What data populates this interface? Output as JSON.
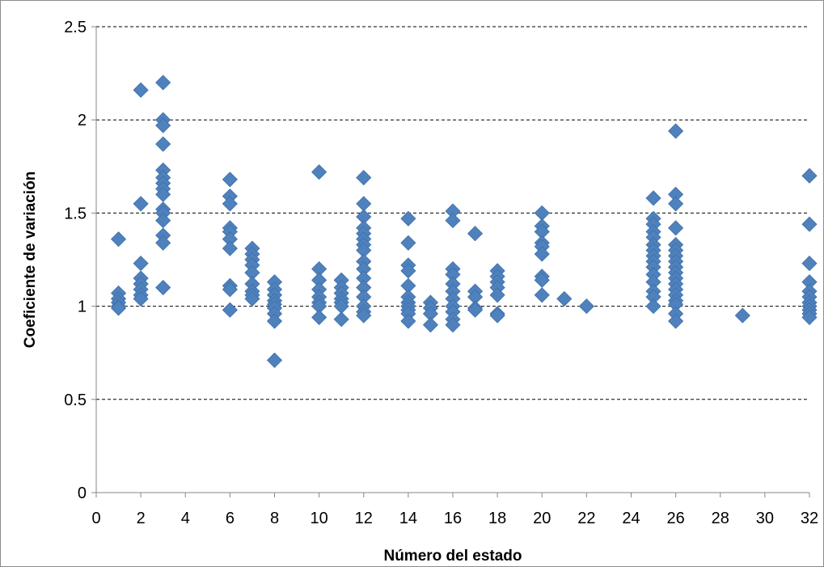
{
  "chart_data": {
    "type": "scatter",
    "title": "",
    "xlabel": "Número del estado",
    "ylabel": "Coeficiente de variación",
    "xlim": [
      0,
      32
    ],
    "ylim": [
      0,
      2.5
    ],
    "x_ticks": [
      0,
      2,
      4,
      6,
      8,
      10,
      12,
      14,
      16,
      18,
      20,
      22,
      24,
      26,
      28,
      30,
      32
    ],
    "y_ticks": [
      0,
      0.5,
      1,
      1.5,
      2,
      2.5
    ],
    "x_tick_labels": [
      "0",
      "2",
      "4",
      "6",
      "8",
      "10",
      "12",
      "14",
      "16",
      "18",
      "20",
      "22",
      "24",
      "26",
      "28",
      "30",
      "32"
    ],
    "y_tick_labels": [
      "0",
      "0.5",
      "1",
      "1.5",
      "2",
      "2.5"
    ],
    "grid": "horizontal dashed lines at major y ticks",
    "marker": "diamond",
    "marker_color": "#4f81bd",
    "series": [
      {
        "points": [
          [
            1,
            1.36
          ],
          [
            1,
            1.07
          ],
          [
            1,
            1.04
          ],
          [
            1,
            1.02
          ],
          [
            1,
            1.0
          ],
          [
            1,
            0.99
          ],
          [
            2,
            2.16
          ],
          [
            2,
            1.55
          ],
          [
            2,
            1.23
          ],
          [
            2,
            1.15
          ],
          [
            2,
            1.12
          ],
          [
            2,
            1.09
          ],
          [
            2,
            1.06
          ],
          [
            2,
            1.04
          ],
          [
            3,
            2.2
          ],
          [
            3,
            2.0
          ],
          [
            3,
            1.97
          ],
          [
            3,
            1.87
          ],
          [
            3,
            1.73
          ],
          [
            3,
            1.69
          ],
          [
            3,
            1.66
          ],
          [
            3,
            1.63
          ],
          [
            3,
            1.6
          ],
          [
            3,
            1.52
          ],
          [
            3,
            1.5
          ],
          [
            3,
            1.46
          ],
          [
            3,
            1.38
          ],
          [
            3,
            1.34
          ],
          [
            3,
            1.1
          ],
          [
            6,
            1.68
          ],
          [
            6,
            1.59
          ],
          [
            6,
            1.55
          ],
          [
            6,
            1.42
          ],
          [
            6,
            1.4
          ],
          [
            6,
            1.36
          ],
          [
            6,
            1.31
          ],
          [
            6,
            1.11
          ],
          [
            6,
            1.09
          ],
          [
            6,
            0.98
          ],
          [
            7,
            1.31
          ],
          [
            7,
            1.28
          ],
          [
            7,
            1.25
          ],
          [
            7,
            1.22
          ],
          [
            7,
            1.18
          ],
          [
            7,
            1.12
          ],
          [
            7,
            1.08
          ],
          [
            7,
            1.06
          ],
          [
            7,
            1.04
          ],
          [
            8,
            1.13
          ],
          [
            8,
            1.09
          ],
          [
            8,
            1.06
          ],
          [
            8,
            1.03
          ],
          [
            8,
            1.01
          ],
          [
            8,
            0.99
          ],
          [
            8,
            0.96
          ],
          [
            8,
            0.92
          ],
          [
            8,
            0.71
          ],
          [
            10,
            1.72
          ],
          [
            10,
            1.2
          ],
          [
            10,
            1.14
          ],
          [
            10,
            1.09
          ],
          [
            10,
            1.05
          ],
          [
            10,
            1.02
          ],
          [
            10,
            1.0
          ],
          [
            10,
            0.94
          ],
          [
            11,
            1.14
          ],
          [
            11,
            1.1
          ],
          [
            11,
            1.07
          ],
          [
            11,
            1.04
          ],
          [
            11,
            1.02
          ],
          [
            11,
            1.0
          ],
          [
            11,
            0.93
          ],
          [
            12,
            1.69
          ],
          [
            12,
            1.55
          ],
          [
            12,
            1.48
          ],
          [
            12,
            1.42
          ],
          [
            12,
            1.39
          ],
          [
            12,
            1.36
          ],
          [
            12,
            1.33
          ],
          [
            12,
            1.3
          ],
          [
            12,
            1.24
          ],
          [
            12,
            1.2
          ],
          [
            12,
            1.15
          ],
          [
            12,
            1.1
          ],
          [
            12,
            1.05
          ],
          [
            12,
            1.0
          ],
          [
            12,
            0.97
          ],
          [
            12,
            0.95
          ],
          [
            14,
            1.47
          ],
          [
            14,
            1.34
          ],
          [
            14,
            1.22
          ],
          [
            14,
            1.19
          ],
          [
            14,
            1.11
          ],
          [
            14,
            1.05
          ],
          [
            14,
            1.02
          ],
          [
            14,
            1.0
          ],
          [
            14,
            0.98
          ],
          [
            14,
            0.96
          ],
          [
            14,
            0.92
          ],
          [
            15,
            1.02
          ],
          [
            15,
            0.99
          ],
          [
            15,
            0.96
          ],
          [
            15,
            0.9
          ],
          [
            16,
            1.51
          ],
          [
            16,
            1.46
          ],
          [
            16,
            1.2
          ],
          [
            16,
            1.17
          ],
          [
            16,
            1.12
          ],
          [
            16,
            1.08
          ],
          [
            16,
            1.04
          ],
          [
            16,
            1.0
          ],
          [
            16,
            0.97
          ],
          [
            16,
            0.93
          ],
          [
            16,
            0.9
          ],
          [
            17,
            1.39
          ],
          [
            17,
            1.08
          ],
          [
            17,
            1.05
          ],
          [
            17,
            0.99
          ],
          [
            17,
            0.98
          ],
          [
            18,
            1.19
          ],
          [
            18,
            1.16
          ],
          [
            18,
            1.13
          ],
          [
            18,
            1.1
          ],
          [
            18,
            1.06
          ],
          [
            18,
            0.96
          ],
          [
            18,
            0.95
          ],
          [
            20,
            1.5
          ],
          [
            20,
            1.43
          ],
          [
            20,
            1.4
          ],
          [
            20,
            1.34
          ],
          [
            20,
            1.32
          ],
          [
            20,
            1.28
          ],
          [
            20,
            1.16
          ],
          [
            20,
            1.14
          ],
          [
            20,
            1.06
          ],
          [
            21,
            1.04
          ],
          [
            22,
            1.0
          ],
          [
            25,
            1.58
          ],
          [
            25,
            1.47
          ],
          [
            25,
            1.44
          ],
          [
            25,
            1.4
          ],
          [
            25,
            1.37
          ],
          [
            25,
            1.33
          ],
          [
            25,
            1.3
          ],
          [
            25,
            1.27
          ],
          [
            25,
            1.24
          ],
          [
            25,
            1.21
          ],
          [
            25,
            1.17
          ],
          [
            25,
            1.13
          ],
          [
            25,
            1.08
          ],
          [
            25,
            1.05
          ],
          [
            25,
            1.0
          ],
          [
            26,
            1.94
          ],
          [
            26,
            1.6
          ],
          [
            26,
            1.55
          ],
          [
            26,
            1.42
          ],
          [
            26,
            1.33
          ],
          [
            26,
            1.3
          ],
          [
            26,
            1.27
          ],
          [
            26,
            1.24
          ],
          [
            26,
            1.21
          ],
          [
            26,
            1.18
          ],
          [
            26,
            1.15
          ],
          [
            26,
            1.12
          ],
          [
            26,
            1.09
          ],
          [
            26,
            1.06
          ],
          [
            26,
            1.03
          ],
          [
            26,
            1.01
          ],
          [
            26,
            0.96
          ],
          [
            26,
            0.92
          ],
          [
            29,
            0.95
          ],
          [
            32,
            1.7
          ],
          [
            32,
            1.44
          ],
          [
            32,
            1.23
          ],
          [
            32,
            1.13
          ],
          [
            32,
            1.08
          ],
          [
            32,
            1.05
          ],
          [
            32,
            1.02
          ],
          [
            32,
            1.0
          ],
          [
            32,
            0.98
          ],
          [
            32,
            0.96
          ],
          [
            32,
            0.94
          ]
        ]
      }
    ]
  }
}
